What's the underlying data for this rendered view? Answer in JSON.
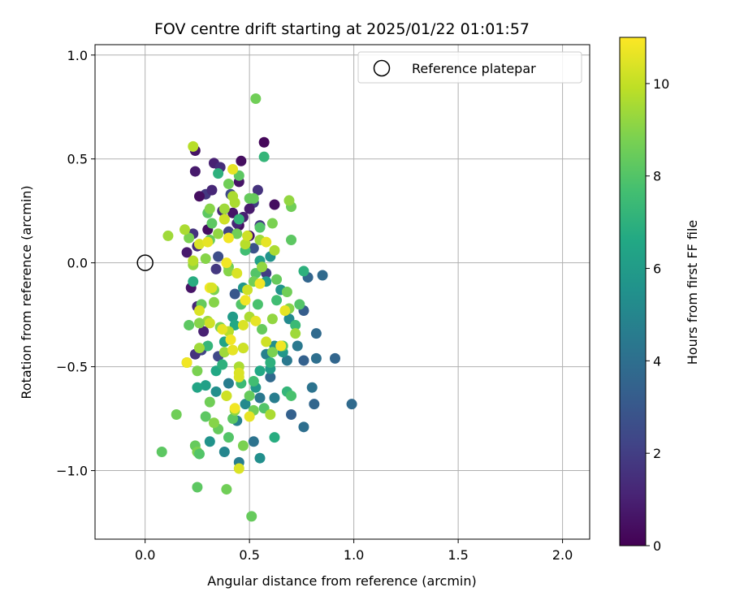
{
  "chart_data": {
    "type": "scatter",
    "title": "FOV centre drift starting at 2025/01/22 01:01:57",
    "xlabel": "Angular distance from reference (arcmin)",
    "ylabel": "Rotation from reference (arcmin)",
    "xlim": [
      -0.24,
      2.13
    ],
    "ylim": [
      -1.33,
      1.05
    ],
    "xticks": [
      "0.0",
      "0.5",
      "1.0",
      "1.5",
      "2.0"
    ],
    "yticks": [
      "−1.0",
      "−0.5",
      "0.0",
      "0.5",
      "1.0"
    ],
    "grid": true,
    "legend": {
      "position": "top-right",
      "entries": [
        "Reference platepar"
      ]
    },
    "reference_point": {
      "x": 0.0,
      "y": 0.0
    },
    "colorbar": {
      "label": "Hours from first FF file",
      "range": [
        0,
        11
      ],
      "ticks": [
        "0",
        "2",
        "4",
        "6",
        "8",
        "10"
      ],
      "colormap": "viridis"
    },
    "points": [
      [
        0.57,
        0.58,
        0.2
      ],
      [
        0.24,
        0.54,
        0.6
      ],
      [
        0.33,
        0.48,
        1.0
      ],
      [
        0.36,
        0.46,
        1.4
      ],
      [
        0.46,
        0.49,
        0.4
      ],
      [
        0.24,
        0.44,
        0.8
      ],
      [
        0.45,
        0.39,
        0.6
      ],
      [
        0.29,
        0.33,
        1.8
      ],
      [
        0.26,
        0.32,
        0.4
      ],
      [
        0.32,
        0.35,
        1.2
      ],
      [
        0.41,
        0.33,
        2.4
      ],
      [
        0.52,
        0.29,
        2.0
      ],
      [
        0.54,
        0.35,
        1.6
      ],
      [
        0.62,
        0.28,
        0.4
      ],
      [
        0.37,
        0.25,
        1.4
      ],
      [
        0.42,
        0.24,
        0.6
      ],
      [
        0.47,
        0.22,
        1.0
      ],
      [
        0.5,
        0.26,
        0.8
      ],
      [
        0.45,
        0.18,
        0.4
      ],
      [
        0.4,
        0.15,
        2.2
      ],
      [
        0.3,
        0.16,
        0.4
      ],
      [
        0.23,
        0.14,
        1.6
      ],
      [
        0.55,
        0.18,
        1.8
      ],
      [
        0.2,
        0.05,
        0.8
      ],
      [
        0.25,
        0.08,
        1.4
      ],
      [
        0.35,
        0.03,
        2.6
      ],
      [
        0.5,
        0.13,
        0.6
      ],
      [
        0.44,
        0.19,
        1.2
      ],
      [
        0.22,
        -0.12,
        0.6
      ],
      [
        0.25,
        -0.21,
        1.2
      ],
      [
        0.34,
        -0.03,
        1.8
      ],
      [
        0.28,
        -0.33,
        1.0
      ],
      [
        0.27,
        -0.42,
        2.2
      ],
      [
        0.35,
        -0.45,
        2.4
      ],
      [
        0.24,
        -0.44,
        1.6
      ],
      [
        0.52,
        0.07,
        2.8
      ],
      [
        0.58,
        -0.05,
        2.0
      ],
      [
        0.43,
        -0.15,
        3.0
      ],
      [
        0.78,
        -0.07,
        3.6
      ],
      [
        0.85,
        -0.06,
        3.8
      ],
      [
        0.91,
        -0.46,
        3.6
      ],
      [
        0.82,
        -0.46,
        4.0
      ],
      [
        0.99,
        -0.68,
        3.8
      ],
      [
        0.8,
        -0.6,
        4.2
      ],
      [
        0.81,
        -0.68,
        3.6
      ],
      [
        0.76,
        -0.79,
        4.0
      ],
      [
        0.7,
        -0.73,
        3.4
      ],
      [
        0.76,
        -0.47,
        3.4
      ],
      [
        0.82,
        -0.34,
        3.8
      ],
      [
        0.76,
        -0.23,
        3.2
      ],
      [
        0.68,
        -0.47,
        4.4
      ],
      [
        0.65,
        -0.4,
        4.0
      ],
      [
        0.6,
        -0.55,
        3.8
      ],
      [
        0.55,
        -0.65,
        4.4
      ],
      [
        0.62,
        -0.65,
        4.6
      ],
      [
        0.52,
        -0.86,
        4.2
      ],
      [
        0.45,
        -0.96,
        4.6
      ],
      [
        0.55,
        -0.94,
        5.4
      ],
      [
        0.38,
        -0.91,
        5.0
      ],
      [
        0.31,
        -0.86,
        5.6
      ],
      [
        0.44,
        -0.76,
        4.8
      ],
      [
        0.48,
        -0.68,
        5.2
      ],
      [
        0.34,
        -0.62,
        5.4
      ],
      [
        0.4,
        -0.58,
        4.6
      ],
      [
        0.58,
        -0.44,
        4.8
      ],
      [
        0.62,
        -0.4,
        5.4
      ],
      [
        0.66,
        -0.43,
        5.8
      ],
      [
        0.73,
        -0.4,
        4.4
      ],
      [
        0.69,
        -0.27,
        5.2
      ],
      [
        0.65,
        -0.13,
        5.6
      ],
      [
        0.58,
        -0.09,
        6.0
      ],
      [
        0.55,
        0.01,
        6.2
      ],
      [
        0.6,
        0.03,
        5.6
      ],
      [
        0.47,
        -0.12,
        5.8
      ],
      [
        0.42,
        -0.26,
        6.0
      ],
      [
        0.38,
        -0.38,
        6.4
      ],
      [
        0.34,
        -0.52,
        6.6
      ],
      [
        0.29,
        -0.59,
        6.2
      ],
      [
        0.25,
        -0.6,
        6.4
      ],
      [
        0.55,
        -0.52,
        6.6
      ],
      [
        0.6,
        -0.51,
        6.0
      ],
      [
        0.53,
        -0.6,
        5.8
      ],
      [
        0.43,
        -0.3,
        6.6
      ],
      [
        0.57,
        0.51,
        7.2
      ],
      [
        0.35,
        0.43,
        7.0
      ],
      [
        0.23,
        -0.09,
        6.8
      ],
      [
        0.3,
        -0.4,
        7.2
      ],
      [
        0.37,
        -0.49,
        7.0
      ],
      [
        0.46,
        -0.58,
        7.4
      ],
      [
        0.62,
        -0.84,
        6.8
      ],
      [
        0.68,
        -0.62,
        7.2
      ],
      [
        0.52,
        -0.57,
        7.6
      ],
      [
        0.6,
        -0.48,
        7.0
      ],
      [
        0.7,
        -0.64,
        7.8
      ],
      [
        0.63,
        -0.18,
        7.6
      ],
      [
        0.72,
        -0.3,
        7.4
      ],
      [
        0.76,
        -0.04,
        7.0
      ],
      [
        0.54,
        -0.2,
        7.8
      ],
      [
        0.48,
        0.06,
        7.6
      ],
      [
        0.45,
        0.21,
        7.2
      ],
      [
        0.53,
        0.79,
        8.6
      ],
      [
        0.45,
        0.42,
        8.2
      ],
      [
        0.4,
        0.38,
        8.6
      ],
      [
        0.52,
        0.31,
        8.4
      ],
      [
        0.38,
        0.21,
        8.8
      ],
      [
        0.32,
        0.19,
        8.2
      ],
      [
        0.55,
        0.17,
        8.0
      ],
      [
        0.7,
        0.27,
        8.6
      ],
      [
        0.7,
        0.11,
        8.2
      ],
      [
        0.63,
        -0.08,
        8.4
      ],
      [
        0.53,
        -0.05,
        8.0
      ],
      [
        0.4,
        -0.02,
        8.6
      ],
      [
        0.33,
        -0.13,
        8.8
      ],
      [
        0.27,
        -0.2,
        8.4
      ],
      [
        0.21,
        -0.3,
        8.2
      ],
      [
        0.2,
        -0.48,
        8.0
      ],
      [
        0.25,
        -0.52,
        8.8
      ],
      [
        0.31,
        -0.67,
        8.6
      ],
      [
        0.29,
        -0.74,
        8.2
      ],
      [
        0.35,
        -0.8,
        8.4
      ],
      [
        0.4,
        -0.84,
        8.0
      ],
      [
        0.15,
        -0.73,
        8.6
      ],
      [
        0.08,
        -0.91,
        8.2
      ],
      [
        0.24,
        -0.88,
        8.4
      ],
      [
        0.25,
        -0.91,
        8.8
      ],
      [
        0.26,
        -0.92,
        8.0
      ],
      [
        0.25,
        -1.08,
        8.2
      ],
      [
        0.39,
        -1.09,
        8.6
      ],
      [
        0.51,
        -1.22,
        8.4
      ],
      [
        0.47,
        -0.88,
        8.8
      ],
      [
        0.42,
        -0.75,
        8.2
      ],
      [
        0.52,
        -0.71,
        8.6
      ],
      [
        0.57,
        -0.7,
        8.0
      ],
      [
        0.5,
        -0.64,
        8.4
      ],
      [
        0.61,
        -0.43,
        8.8
      ],
      [
        0.66,
        -0.4,
        8.2
      ],
      [
        0.74,
        -0.2,
        8.0
      ],
      [
        0.68,
        -0.14,
        8.6
      ],
      [
        0.56,
        -0.32,
        8.4
      ],
      [
        0.47,
        -0.41,
        8.2
      ],
      [
        0.36,
        -0.31,
        8.8
      ],
      [
        0.46,
        -0.2,
        8.0
      ],
      [
        0.52,
        -0.09,
        8.6
      ],
      [
        0.31,
        0.11,
        8.4
      ],
      [
        0.21,
        0.12,
        8.8
      ],
      [
        0.3,
        0.24,
        8.2
      ],
      [
        0.5,
        0.31,
        8.4
      ],
      [
        0.44,
        0.14,
        8.6
      ],
      [
        0.61,
        0.19,
        8.8
      ],
      [
        0.69,
        0.3,
        9.2
      ],
      [
        0.38,
        0.26,
        9.4
      ],
      [
        0.31,
        0.26,
        9.0
      ],
      [
        0.42,
        0.32,
        9.6
      ],
      [
        0.23,
        0.56,
        9.8
      ],
      [
        0.19,
        0.16,
        9.6
      ],
      [
        0.11,
        0.13,
        9.4
      ],
      [
        0.23,
        -0.01,
        9.2
      ],
      [
        0.29,
        0.02,
        9.0
      ],
      [
        0.48,
        0.09,
        9.8
      ],
      [
        0.55,
        0.11,
        9.4
      ],
      [
        0.62,
        0.06,
        9.6
      ],
      [
        0.56,
        -0.02,
        9.2
      ],
      [
        0.4,
        -0.04,
        9.0
      ],
      [
        0.3,
        -0.28,
        9.4
      ],
      [
        0.4,
        -0.33,
        9.8
      ],
      [
        0.5,
        -0.26,
        9.6
      ],
      [
        0.61,
        -0.27,
        9.2
      ],
      [
        0.69,
        -0.22,
        9.0
      ],
      [
        0.72,
        -0.34,
        9.4
      ],
      [
        0.45,
        -0.5,
        9.6
      ],
      [
        0.39,
        -0.64,
        9.8
      ],
      [
        0.33,
        -0.77,
        9.0
      ],
      [
        0.43,
        -0.71,
        9.2
      ],
      [
        0.6,
        -0.73,
        9.6
      ],
      [
        0.38,
        -0.43,
        9.4
      ],
      [
        0.26,
        -0.29,
        9.0
      ],
      [
        0.23,
        0.01,
        9.8
      ],
      [
        0.35,
        0.14,
        9.2
      ],
      [
        0.43,
        0.29,
        9.6
      ],
      [
        0.26,
        -0.41,
        9.4
      ],
      [
        0.33,
        -0.19,
        9.0
      ],
      [
        0.42,
        0.45,
        10.6
      ],
      [
        0.26,
        0.09,
        10.4
      ],
      [
        0.4,
        0.12,
        10.8
      ],
      [
        0.49,
        0.13,
        10.2
      ],
      [
        0.58,
        0.1,
        10.6
      ],
      [
        0.39,
        0.0,
        10.8
      ],
      [
        0.44,
        -0.05,
        10.4
      ],
      [
        0.49,
        -0.13,
        10.2
      ],
      [
        0.55,
        -0.1,
        10.8
      ],
      [
        0.67,
        -0.23,
        10.6
      ],
      [
        0.47,
        -0.3,
        10.4
      ],
      [
        0.41,
        -0.37,
        10.8
      ],
      [
        0.31,
        -0.29,
        10.2
      ],
      [
        0.37,
        -0.32,
        10.6
      ],
      [
        0.26,
        -0.23,
        10.4
      ],
      [
        0.31,
        -0.12,
        10.8
      ],
      [
        0.47,
        -0.41,
        10.2
      ],
      [
        0.42,
        -0.42,
        10.6
      ],
      [
        0.2,
        -0.48,
        10.8
      ],
      [
        0.45,
        -0.53,
        10.4
      ],
      [
        0.39,
        -0.64,
        10.2
      ],
      [
        0.43,
        -0.7,
        10.8
      ],
      [
        0.5,
        -0.74,
        10.6
      ],
      [
        0.45,
        -0.99,
        10.4
      ],
      [
        0.38,
        0.21,
        10.2
      ],
      [
        0.3,
        0.1,
        10.6
      ],
      [
        0.32,
        -0.12,
        10.4
      ],
      [
        0.48,
        -0.18,
        10.8
      ],
      [
        0.53,
        -0.28,
        10.6
      ],
      [
        0.58,
        -0.38,
        10.2
      ],
      [
        0.65,
        -0.4,
        10.8
      ],
      [
        0.45,
        -0.55,
        10.4
      ]
    ]
  }
}
